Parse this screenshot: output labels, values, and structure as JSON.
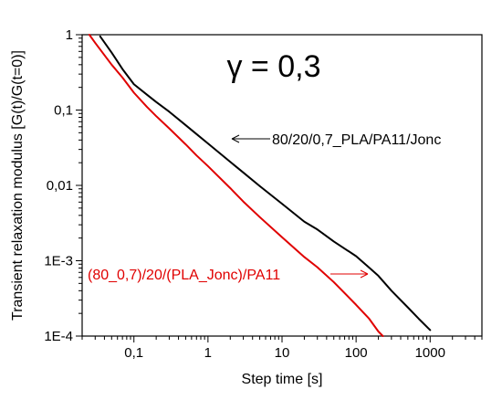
{
  "chart_data": {
    "type": "line",
    "title": "γ = 0,3",
    "xlabel": "Step time [s]",
    "ylabel": "Transient relaxation modulus [G(t)/G(t=0)]",
    "x_scale": "log",
    "y_scale": "log",
    "xlim": [
      0.02,
      5000
    ],
    "ylim": [
      0.0001,
      1
    ],
    "x_ticks": [
      {
        "value": 0.1,
        "label": "0,1"
      },
      {
        "value": 1,
        "label": "1"
      },
      {
        "value": 10,
        "label": "10"
      },
      {
        "value": 100,
        "label": "100"
      },
      {
        "value": 1000,
        "label": "1000"
      }
    ],
    "y_ticks": [
      {
        "value": 1,
        "label": "1"
      },
      {
        "value": 0.1,
        "label": "0,1"
      },
      {
        "value": 0.01,
        "label": "0,01"
      },
      {
        "value": 0.001,
        "label": "1E-3"
      },
      {
        "value": 0.0001,
        "label": "1E-4"
      }
    ],
    "grid": false,
    "series": [
      {
        "name": "80/20/0,7_PLA/PA11/Jonc",
        "color": "#000000",
        "points": [
          [
            0.035,
            0.95
          ],
          [
            0.05,
            0.58
          ],
          [
            0.07,
            0.35
          ],
          [
            0.1,
            0.22
          ],
          [
            0.15,
            0.16
          ],
          [
            0.2,
            0.128
          ],
          [
            0.3,
            0.095
          ],
          [
            0.5,
            0.063
          ],
          [
            0.7,
            0.048
          ],
          [
            1,
            0.036
          ],
          [
            2,
            0.0205
          ],
          [
            3,
            0.0148
          ],
          [
            5,
            0.0098
          ],
          [
            10,
            0.0057
          ],
          [
            20,
            0.0033
          ],
          [
            30,
            0.0026
          ],
          [
            50,
            0.0018
          ],
          [
            100,
            0.00115
          ],
          [
            150,
            0.00081
          ],
          [
            200,
            0.00063
          ],
          [
            300,
            0.0004
          ],
          [
            500,
            0.00024
          ],
          [
            700,
            0.00017
          ],
          [
            1000,
            0.00012
          ]
        ]
      },
      {
        "name": "(80_0,7)/20/(PLA_Jonc)/PA11",
        "color": "#e00000",
        "points": [
          [
            0.025,
            1.0
          ],
          [
            0.03,
            0.78
          ],
          [
            0.05,
            0.4
          ],
          [
            0.07,
            0.27
          ],
          [
            0.1,
            0.17
          ],
          [
            0.15,
            0.11
          ],
          [
            0.2,
            0.083
          ],
          [
            0.3,
            0.057
          ],
          [
            0.5,
            0.035
          ],
          [
            0.7,
            0.025
          ],
          [
            1,
            0.018
          ],
          [
            2,
            0.0092
          ],
          [
            3,
            0.0061
          ],
          [
            5,
            0.0038
          ],
          [
            10,
            0.00205
          ],
          [
            20,
            0.00112
          ],
          [
            30,
            0.00082
          ],
          [
            50,
            0.00052
          ],
          [
            100,
            0.00026
          ],
          [
            150,
            0.00017
          ],
          [
            200,
            0.000115
          ],
          [
            230,
            0.0001
          ]
        ]
      }
    ],
    "annotations": [
      {
        "text": "γ = 0,3"
      },
      {
        "text": "80/20/0,7_PLA/PA11/Jonc",
        "color": "#000000",
        "arrow_to": [
          1.6,
          0.045
        ]
      },
      {
        "text": "(80_0,7)/20/(PLA_Jonc)/PA11",
        "color": "#e00000",
        "arrow_to": [
          140,
          0.00065
        ]
      }
    ]
  }
}
